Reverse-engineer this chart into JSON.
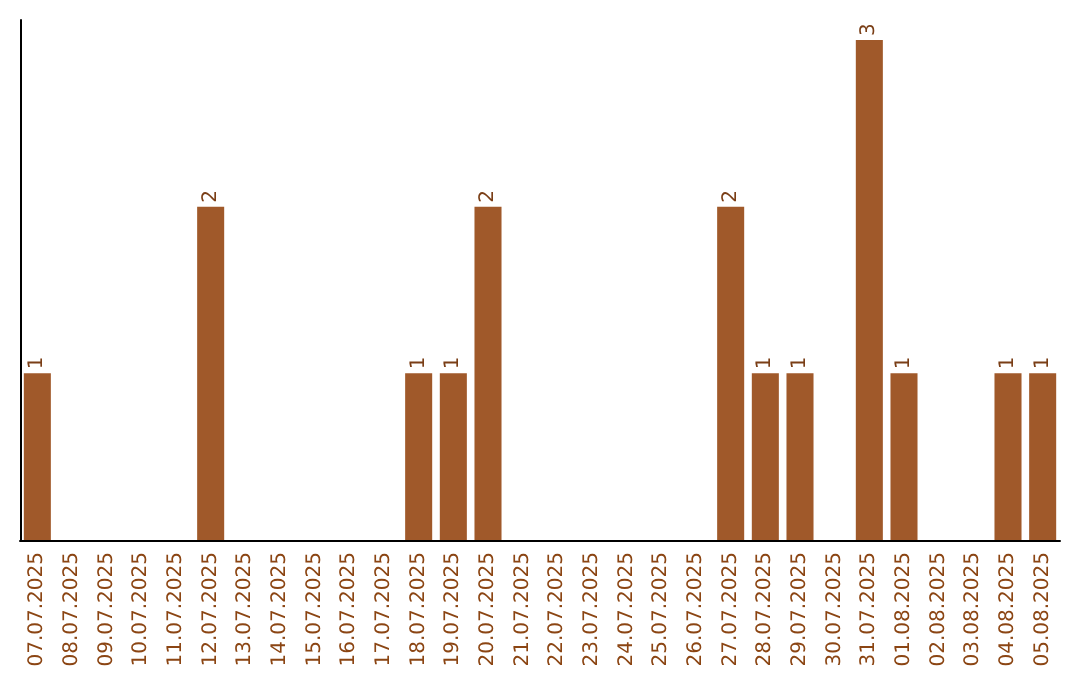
{
  "chart_data": {
    "type": "bar",
    "categories": [
      "07.07.2025",
      "08.07.2025",
      "09.07.2025",
      "10.07.2025",
      "11.07.2025",
      "12.07.2025",
      "13.07.2025",
      "14.07.2025",
      "15.07.2025",
      "16.07.2025",
      "17.07.2025",
      "18.07.2025",
      "19.07.2025",
      "20.07.2025",
      "21.07.2025",
      "22.07.2025",
      "23.07.2025",
      "24.07.2025",
      "25.07.2025",
      "26.07.2025",
      "27.07.2025",
      "28.07.2025",
      "29.07.2025",
      "30.07.2025",
      "31.07.2025",
      "01.08.2025",
      "02.08.2025",
      "03.08.2025",
      "04.08.2025",
      "05.08.2025"
    ],
    "values": [
      1,
      0,
      0,
      0,
      0,
      2,
      0,
      0,
      0,
      0,
      0,
      1,
      1,
      2,
      0,
      0,
      0,
      0,
      0,
      0,
      2,
      1,
      1,
      0,
      3,
      1,
      0,
      0,
      1,
      1
    ],
    "value_labels": [
      "1",
      null,
      null,
      null,
      null,
      "2",
      null,
      null,
      null,
      null,
      null,
      "1",
      "1",
      "2",
      null,
      null,
      null,
      null,
      null,
      null,
      "2",
      "1",
      "1",
      null,
      "3",
      "1",
      null,
      null,
      "1",
      "1"
    ],
    "color": "#a0592a",
    "tick_labels": "x"
  }
}
